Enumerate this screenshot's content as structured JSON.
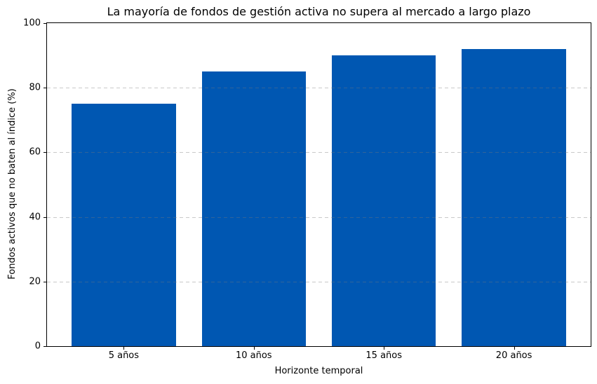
{
  "chart_data": {
    "type": "bar",
    "title": "La mayoría de fondos de gestión activa no supera al mercado a largo plazo",
    "xlabel": "Horizonte temporal",
    "ylabel": "Fondos activos que no baten al índice (%)",
    "categories": [
      "5 años",
      "10 años",
      "15 años",
      "20 años"
    ],
    "values": [
      75,
      85,
      90,
      92
    ],
    "ylim": [
      0,
      100
    ],
    "yticks": [
      0,
      20,
      40,
      60,
      80,
      100
    ],
    "bar_color": "#0057b2",
    "grid": "horizontal dashed, drawn over bars",
    "legend": "none",
    "background": "#ffffff"
  }
}
